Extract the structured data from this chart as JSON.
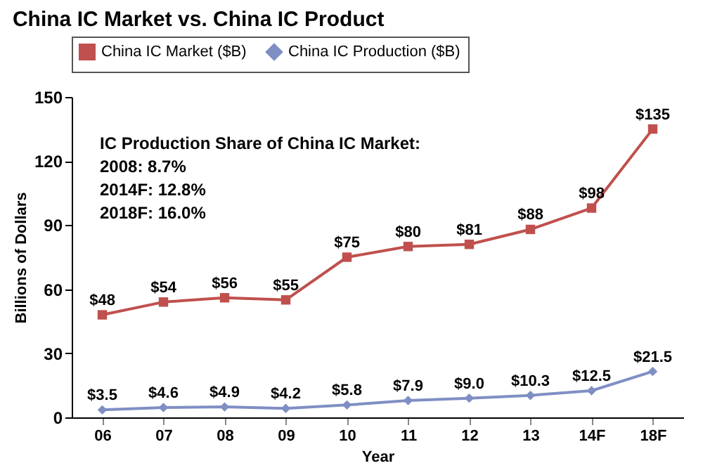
{
  "chart_data": {
    "type": "line",
    "title": "China IC Market vs. China IC Product",
    "xlabel": "Year",
    "ylabel": "Billions of Dollars",
    "categories": [
      "06",
      "07",
      "08",
      "09",
      "10",
      "11",
      "12",
      "13",
      "14F",
      "18F"
    ],
    "series": [
      {
        "name": "China IC Market ($B)",
        "color": "#c0504d",
        "marker": "square",
        "values": [
          48,
          54,
          56,
          55,
          75,
          80,
          81,
          88,
          98,
          135
        ],
        "value_labels": [
          "$48",
          "$54",
          "$56",
          "$55",
          "$75",
          "$80",
          "$81",
          "$88",
          "$98",
          "$135"
        ]
      },
      {
        "name": "China IC Production ($B)",
        "color": "#7f8fc4",
        "marker": "diamond",
        "values": [
          3.5,
          4.6,
          4.9,
          4.2,
          5.8,
          7.9,
          9.0,
          10.3,
          12.5,
          21.5
        ],
        "value_labels": [
          "$3.5",
          "$4.6",
          "$4.9",
          "$4.2",
          "$5.8",
          "$7.9",
          "$9.0",
          "$10.3",
          "$12.5",
          "$21.5"
        ]
      }
    ],
    "ylim": [
      0,
      150
    ],
    "yticks": [
      0,
      30,
      60,
      90,
      120,
      150
    ],
    "grid": false,
    "legend": "top",
    "annotations": [
      "IC Production Share of China IC Market:",
      "2008: 8.7%",
      "2014F: 12.8%",
      "2018F: 16.0%"
    ]
  }
}
